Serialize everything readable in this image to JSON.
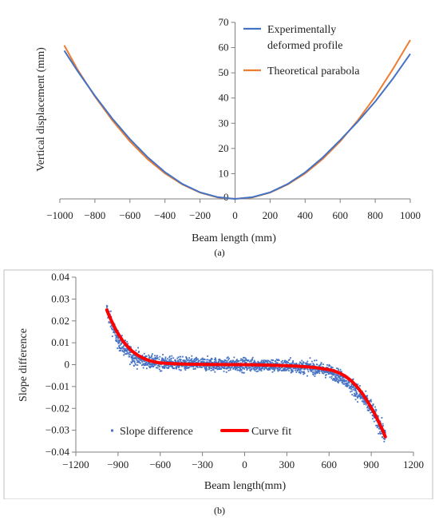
{
  "chart_data": [
    {
      "type": "line",
      "panel_label": "(a)",
      "title": "",
      "xlabel": "Beam length (mm)",
      "ylabel": "Vertical displacement (mm)",
      "xlim": [
        -1000,
        1000
      ],
      "ylim": [
        0,
        70
      ],
      "x_ticks": [
        "−1000",
        "−800",
        "−600",
        "−400",
        "−200",
        "0",
        "200",
        "400",
        "600",
        "800",
        "1000"
      ],
      "x_tick_values": [
        -1000,
        -800,
        -600,
        -400,
        -200,
        0,
        200,
        400,
        600,
        800,
        1000
      ],
      "y_ticks": [
        "0",
        "10",
        "20",
        "30",
        "40",
        "50",
        "60",
        "70"
      ],
      "y_tick_values": [
        0,
        10,
        20,
        30,
        40,
        50,
        60,
        70
      ],
      "grid": false,
      "legend_position": "top-right",
      "series": [
        {
          "name": "Experimentally deformed profile",
          "legend_lines": [
            "Experimentally",
            "deformed profile"
          ],
          "color": "#4472C4",
          "x": [
            -975,
            -900,
            -800,
            -700,
            -600,
            -500,
            -400,
            -300,
            -200,
            -100,
            0,
            100,
            200,
            300,
            400,
            500,
            600,
            700,
            800,
            900,
            1000
          ],
          "y": [
            58.8,
            50.8,
            40.9,
            31.8,
            23.7,
            16.6,
            10.6,
            5.9,
            2.6,
            0.7,
            0,
            0.7,
            2.6,
            5.9,
            10.5,
            16.4,
            23.3,
            30.6,
            38.6,
            47.6,
            57.5
          ]
        },
        {
          "name": "Theoretical parabola",
          "legend_lines": [
            "Theoretical parabola"
          ],
          "color": "#ED7D31",
          "x": [
            -975,
            -900,
            -800,
            -700,
            -600,
            -500,
            -400,
            -300,
            -200,
            -100,
            0,
            100,
            200,
            300,
            400,
            500,
            600,
            700,
            800,
            900,
            1000
          ],
          "y": [
            60.9,
            51.4,
            40.6,
            31.1,
            22.8,
            15.8,
            10.1,
            5.7,
            2.5,
            0.6,
            0,
            0.6,
            2.5,
            5.7,
            10.1,
            15.8,
            22.8,
            31.1,
            40.6,
            51.4,
            63.0
          ]
        }
      ]
    },
    {
      "type": "scatter",
      "panel_label": "(b)",
      "title": "",
      "xlabel": "Beam length(mm)",
      "ylabel": "Slope difference",
      "xlim": [
        -1200,
        1200
      ],
      "ylim": [
        -0.04,
        0.04
      ],
      "x_ticks": [
        "−1200",
        "−900",
        "−600",
        "−300",
        "0",
        "300",
        "600",
        "900",
        "1200"
      ],
      "x_tick_values": [
        -1200,
        -900,
        -600,
        -300,
        0,
        300,
        600,
        900,
        1200
      ],
      "y_ticks": [
        "0.04",
        "0.03",
        "0.02",
        "0.01",
        "0",
        "−0.01",
        "−0.02",
        "−0.03",
        "−0.04"
      ],
      "y_tick_values": [
        0.04,
        0.03,
        0.02,
        0.01,
        0,
        -0.01,
        -0.02,
        -0.03,
        -0.04
      ],
      "grid": false,
      "legend_position": "bottom-center",
      "series": [
        {
          "name": "Slope difference",
          "kind": "scatter",
          "color": "#4472C4",
          "x_range": [
            -980,
            1000
          ],
          "approx_point_count": 2000,
          "spread": 0.0035,
          "trend_x": [
            -980,
            -900,
            -800,
            -700,
            -600,
            -500,
            -400,
            -300,
            -200,
            -100,
            0,
            100,
            200,
            300,
            400,
            500,
            600,
            700,
            800,
            900,
            1000
          ],
          "trend_y": [
            0.025,
            0.011,
            0.004,
            0.0015,
            0.0008,
            0.0005,
            0.0003,
            0.0002,
            0.0001,
            0,
            0,
            -0.0002,
            -0.0004,
            -0.0007,
            -0.001,
            -0.0015,
            -0.003,
            -0.006,
            -0.012,
            -0.02,
            -0.033
          ]
        },
        {
          "name": "Curve fit",
          "kind": "line",
          "color": "#FF0000",
          "x": [
            -980,
            -950,
            -920,
            -900,
            -870,
            -840,
            -800,
            -760,
            -720,
            -680,
            -640,
            -600,
            -500,
            -400,
            -300,
            -200,
            -100,
            0,
            100,
            200,
            300,
            400,
            500,
            600,
            640,
            680,
            720,
            760,
            800,
            840,
            880,
            920,
            950,
            980,
            1000
          ],
          "y": [
            0.025,
            0.0205,
            0.0165,
            0.0142,
            0.0112,
            0.0088,
            0.0062,
            0.0043,
            0.0029,
            0.0019,
            0.0012,
            0.0008,
            0.0004,
            0.0002,
            0.0001,
            5e-05,
            0,
            0,
            -0.0001,
            -0.0003,
            -0.0005,
            -0.0008,
            -0.0013,
            -0.0023,
            -0.003,
            -0.004,
            -0.0055,
            -0.0075,
            -0.0102,
            -0.0135,
            -0.0175,
            -0.022,
            -0.0258,
            -0.0298,
            -0.033
          ]
        }
      ]
    }
  ]
}
